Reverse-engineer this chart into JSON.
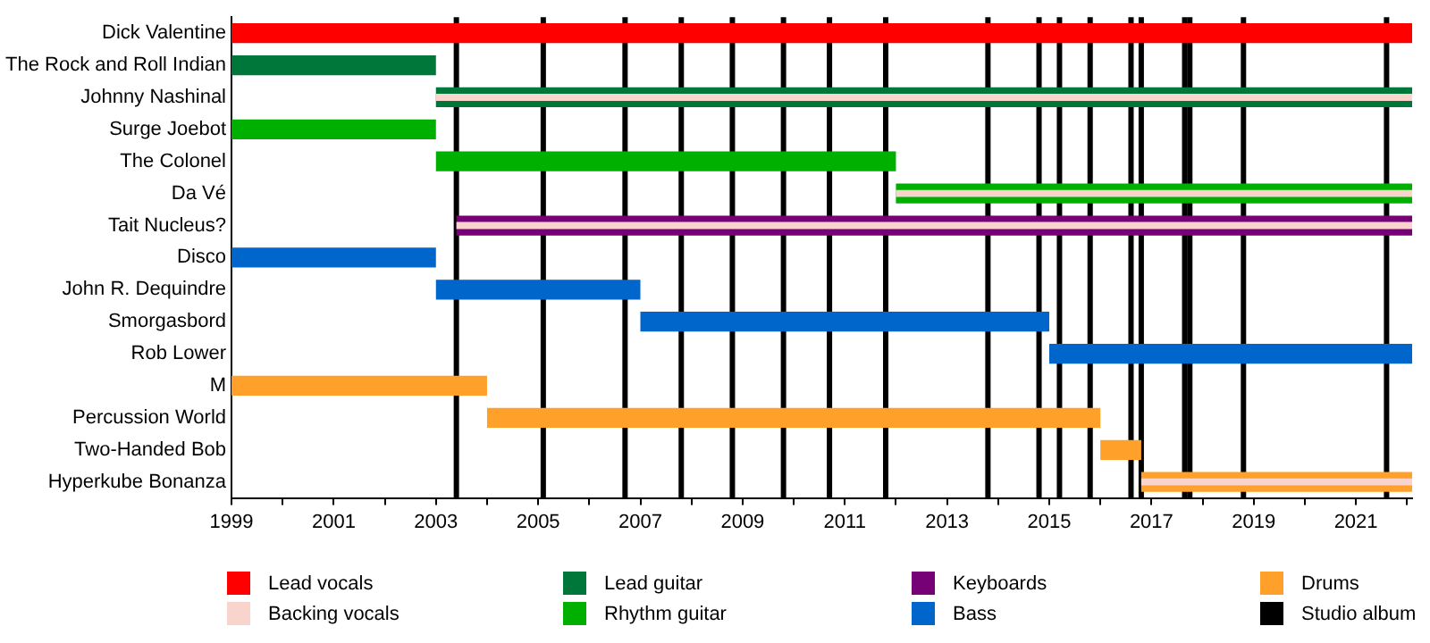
{
  "chart_data": {
    "type": "bar",
    "orientation": "horizontal",
    "grid": false,
    "legend": "bottom",
    "categories": [
      "Dick Valentine",
      "The Rock and Roll Indian",
      "Johnny Nashinal",
      "Surge Joebot",
      "The Colonel",
      "Da Vé",
      "Tait Nucleus?",
      "Disco",
      "John R. Dequindre",
      "Smorgasbord",
      "Rob Lower",
      "M",
      "Percussion World",
      "Two-Handed Bob",
      "Hyperkube Bonanza"
    ],
    "xlim": [
      1999,
      2022.1
    ],
    "xticks": [
      1999,
      {
        "value": 2000,
        "label": null
      },
      2001,
      {
        "value": 2002,
        "label": null
      },
      2003,
      {
        "value": 2004,
        "label": null
      },
      2005,
      {
        "value": 2006,
        "label": null
      },
      2007,
      {
        "value": 2008,
        "label": null
      },
      2009,
      {
        "value": 2010,
        "label": null
      },
      2011,
      {
        "value": 2012,
        "label": null
      },
      2013,
      {
        "value": 2014,
        "label": null
      },
      2015,
      {
        "value": 2016,
        "label": null
      },
      2017,
      {
        "value": 2018,
        "label": null
      },
      2019,
      {
        "value": 2020,
        "label": null
      },
      2021,
      {
        "value": 2022,
        "label": null
      }
    ],
    "series": [
      {
        "name": "Lead vocals",
        "color": "#ff0000",
        "base": [
          1999,
          null,
          null,
          null,
          null,
          null,
          null,
          null,
          null,
          null,
          null,
          null,
          null,
          null,
          null
        ],
        "values": [
          23.1,
          null,
          null,
          null,
          null,
          null,
          null,
          null,
          null,
          null,
          null,
          null,
          null,
          null,
          null
        ]
      },
      {
        "name": "Backing vocals",
        "color": "#f8d4cc",
        "base": [
          null,
          null,
          2003,
          null,
          null,
          2012,
          2003.4,
          null,
          null,
          null,
          null,
          null,
          null,
          null,
          2016.8
        ],
        "values": [
          null,
          null,
          19.1,
          null,
          null,
          10.1,
          18.7,
          null,
          null,
          null,
          null,
          null,
          null,
          null,
          5.3
        ]
      },
      {
        "name": "Lead guitar",
        "color": "#00773a",
        "base": [
          null,
          1999,
          2003,
          null,
          null,
          null,
          null,
          null,
          null,
          null,
          null,
          null,
          null,
          null,
          null
        ],
        "values": [
          null,
          4,
          19.1,
          null,
          null,
          null,
          null,
          null,
          null,
          null,
          null,
          null,
          null,
          null,
          null
        ]
      },
      {
        "name": "Rhythm guitar",
        "color": "#00b000",
        "base": [
          null,
          null,
          null,
          1999,
          2003,
          2012,
          null,
          null,
          null,
          null,
          null,
          null,
          null,
          null,
          null
        ],
        "values": [
          null,
          null,
          null,
          4,
          9,
          10.1,
          null,
          null,
          null,
          null,
          null,
          null,
          null,
          null,
          null
        ]
      },
      {
        "name": "Keyboards",
        "color": "#760076",
        "base": [
          null,
          null,
          null,
          null,
          null,
          null,
          2003.4,
          null,
          null,
          null,
          null,
          null,
          null,
          null,
          null
        ],
        "values": [
          null,
          null,
          null,
          null,
          null,
          null,
          18.7,
          null,
          null,
          null,
          null,
          null,
          null,
          null,
          null
        ]
      },
      {
        "name": "Bass",
        "color": "#0066cc",
        "base": [
          null,
          null,
          null,
          null,
          null,
          null,
          null,
          1999,
          2003,
          2007,
          2015,
          null,
          null,
          null,
          null
        ],
        "values": [
          null,
          null,
          null,
          null,
          null,
          null,
          null,
          4,
          4,
          8,
          7.1,
          null,
          null,
          null,
          null
        ]
      },
      {
        "name": "Drums",
        "color": "#ffa02a",
        "base": [
          null,
          null,
          null,
          null,
          null,
          null,
          null,
          null,
          null,
          null,
          null,
          1999,
          2004,
          2016,
          2016.8
        ],
        "values": [
          null,
          null,
          null,
          null,
          null,
          null,
          null,
          null,
          null,
          null,
          null,
          5,
          12,
          0.8,
          5.3
        ]
      }
    ],
    "ref_lines": [
      {
        "axis": "x",
        "value": 2003.4,
        "label": "Studio album",
        "color": "#000000"
      },
      {
        "axis": "x",
        "value": 2005.1,
        "color": "#000000"
      },
      {
        "axis": "x",
        "value": 2006.7,
        "color": "#000000"
      },
      {
        "axis": "x",
        "value": 2007.8,
        "color": "#000000"
      },
      {
        "axis": "x",
        "value": 2008.8,
        "color": "#000000"
      },
      {
        "axis": "x",
        "value": 2009.8,
        "color": "#000000"
      },
      {
        "axis": "x",
        "value": 2010.7,
        "color": "#000000"
      },
      {
        "axis": "x",
        "value": 2011.8,
        "color": "#000000"
      },
      {
        "axis": "x",
        "value": 2013.8,
        "color": "#000000"
      },
      {
        "axis": "x",
        "value": 2014.8,
        "color": "#000000"
      },
      {
        "axis": "x",
        "value": 2015.2,
        "color": "#000000"
      },
      {
        "axis": "x",
        "value": 2015.8,
        "color": "#000000"
      },
      {
        "axis": "x",
        "value": 2016.6,
        "color": "#000000"
      },
      {
        "axis": "x",
        "value": 2016.8,
        "color": "#000000"
      },
      {
        "axis": "x",
        "value": 2017.65,
        "color": "#000000"
      },
      {
        "axis": "x",
        "value": 2017.75,
        "color": "#000000"
      },
      {
        "axis": "x",
        "value": 2018.8,
        "color": "#000000"
      },
      {
        "axis": "x",
        "value": 2021.6,
        "color": "#000000"
      }
    ]
  }
}
